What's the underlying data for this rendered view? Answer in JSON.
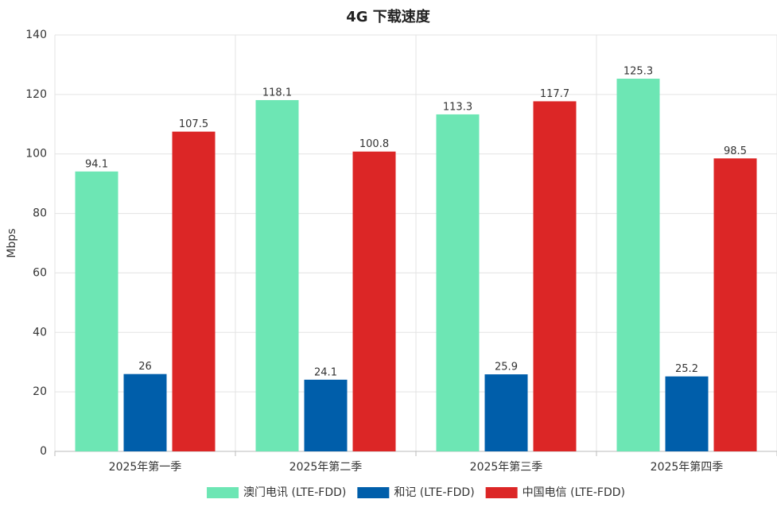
{
  "chart_data": {
    "type": "bar",
    "title": "4G 下载速度",
    "ylabel": "Mbps",
    "categories": [
      "2025年第一季",
      "2025年第二季",
      "2025年第三季",
      "2025年第四季"
    ],
    "series": [
      {
        "name": "澳门电讯 (LTE-FDD)",
        "color": "#6de6b4",
        "values": [
          94.1,
          118.1,
          113.3,
          125.3
        ]
      },
      {
        "name": "和记 (LTE-FDD)",
        "color": "#005eaa",
        "values": [
          26,
          24.1,
          25.9,
          25.2
        ]
      },
      {
        "name": "中国电信 (LTE-FDD)",
        "color": "#dc2626",
        "values": [
          107.5,
          100.8,
          117.7,
          98.5
        ]
      }
    ],
    "ylim": [
      0,
      140
    ],
    "yticks": [
      0,
      20,
      40,
      60,
      80,
      100,
      120,
      140
    ],
    "grid": true,
    "legend": "bottom"
  }
}
